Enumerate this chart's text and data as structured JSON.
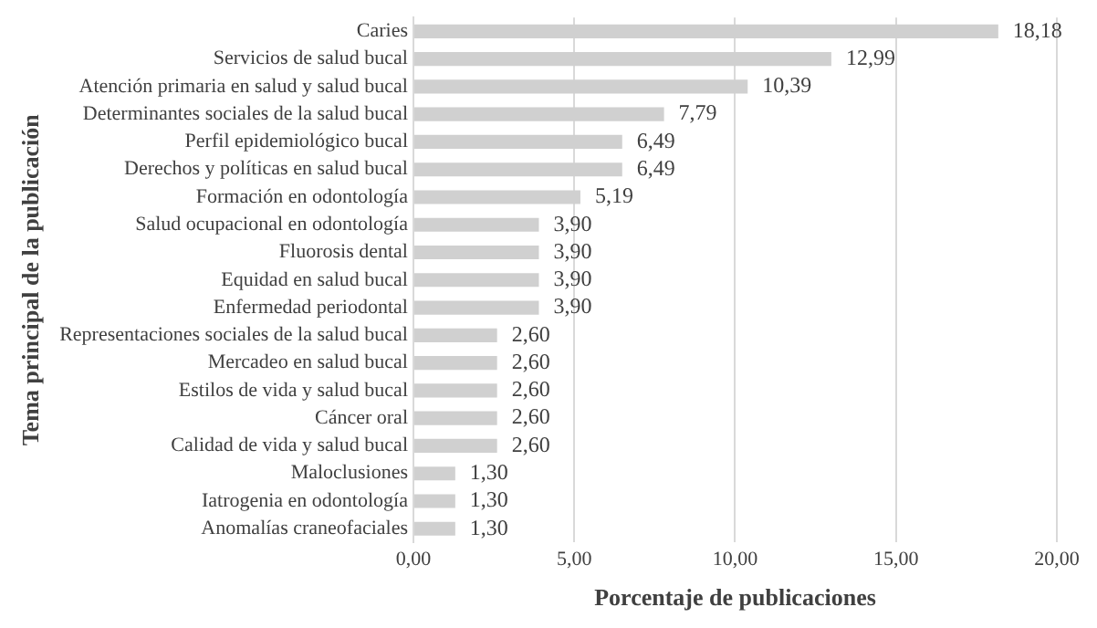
{
  "chart_data": {
    "type": "bar",
    "orientation": "horizontal",
    "xlabel": "Porcentaje de publicaciones",
    "ylabel": "Tema principal de la publicación",
    "categories": [
      "Caries",
      "Servicios de salud bucal",
      "Atención primaria en salud y salud bucal",
      "Determinantes sociales de la salud bucal",
      "Perfil epidemiológico bucal",
      "Derechos y políticas en salud bucal",
      "Formación en odontología",
      "Salud ocupacional en odontología",
      "Fluorosis dental",
      "Equidad en salud bucal",
      "Enfermedad periodontal",
      "Representaciones sociales de la salud bucal",
      "Mercadeo en salud bucal",
      "Estilos de vida y salud bucal",
      "Cáncer oral",
      "Calidad de vida y salud bucal",
      "Maloclusiones",
      "Iatrogenia en odontología",
      "Anomalías craneofaciales"
    ],
    "values": [
      18.18,
      12.99,
      10.39,
      7.79,
      6.49,
      6.49,
      5.19,
      3.9,
      3.9,
      3.9,
      3.9,
      2.6,
      2.6,
      2.6,
      2.6,
      2.6,
      1.3,
      1.3,
      1.3
    ],
    "value_labels": [
      "18,18",
      "12,99",
      "10,39",
      "7,79",
      "6,49",
      "6,49",
      "5,19",
      "3,90",
      "3,90",
      "3,90",
      "3,90",
      "2,60",
      "2,60",
      "2,60",
      "2,60",
      "2,60",
      "1,30",
      "1,30",
      "1,30"
    ],
    "color": "#d0d0d0",
    "xlim": [
      0,
      20
    ],
    "xticks": [
      {
        "value": 0,
        "label": "0,00"
      },
      {
        "value": 5,
        "label": "5,00"
      },
      {
        "value": 10,
        "label": "10,00"
      },
      {
        "value": 15,
        "label": "15,00"
      },
      {
        "value": 20,
        "label": "20,00"
      }
    ],
    "grid": "x",
    "legend": false
  }
}
